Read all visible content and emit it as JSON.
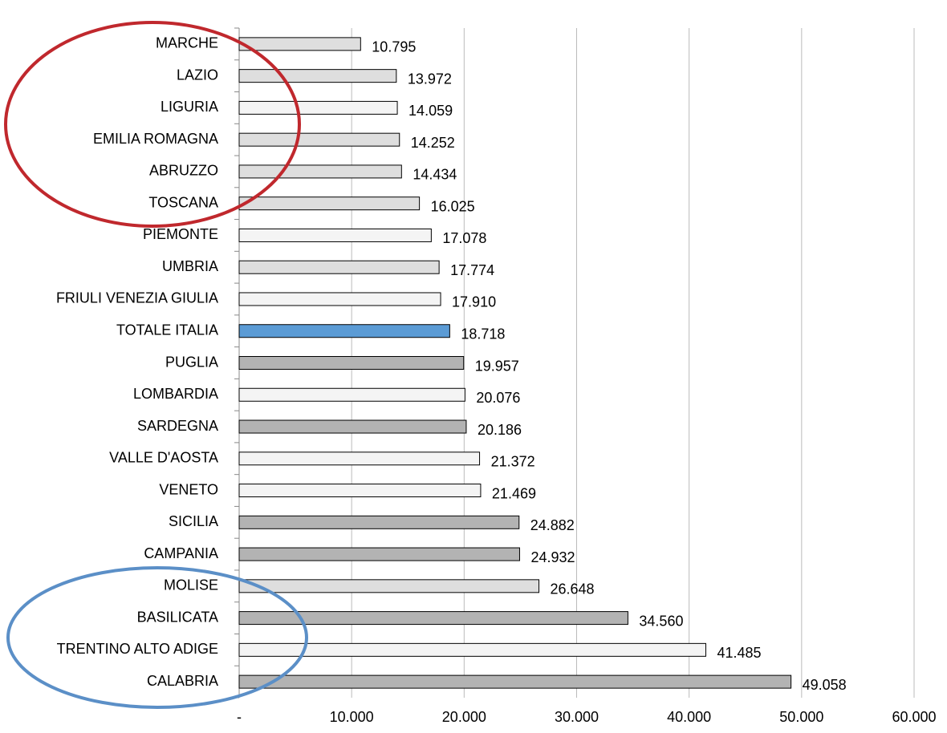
{
  "chart_data": {
    "type": "bar",
    "orientation": "horizontal",
    "categories": [
      "MARCHE",
      "LAZIO",
      "LIGURIA",
      "EMILIA ROMAGNA",
      "ABRUZZO",
      "TOSCANA",
      "PIEMONTE",
      "UMBRIA",
      "FRIULI VENEZIA GIULIA",
      "TOTALE ITALIA",
      "PUGLIA",
      "LOMBARDIA",
      "SARDEGNA",
      "VALLE D'AOSTA",
      "VENETO",
      "SICILIA",
      "CAMPANIA",
      "MOLISE",
      "BASILICATA",
      "TRENTINO ALTO ADIGE",
      "CALABRIA"
    ],
    "values": [
      10795,
      13972,
      14059,
      14252,
      14434,
      16025,
      17078,
      17774,
      17910,
      18718,
      19957,
      20076,
      20186,
      21372,
      21469,
      24882,
      24932,
      26648,
      34560,
      41485,
      49058
    ],
    "value_labels": [
      "10.795",
      "13.972",
      "14.059",
      "14.252",
      "14.434",
      "16.025",
      "17.078",
      "17.774",
      "17.910",
      "18.718",
      "19.957",
      "20.076",
      "20.186",
      "21.372",
      "21.469",
      "24.882",
      "24.932",
      "26.648",
      "34.560",
      "41.485",
      "49.058"
    ],
    "colors": [
      "#dedede",
      "#dedede",
      "#f4f4f4",
      "#dedede",
      "#dedede",
      "#dedede",
      "#f4f4f4",
      "#dedede",
      "#f4f4f4",
      "#5b9bd5",
      "#b3b3b3",
      "#f4f4f4",
      "#b3b3b3",
      "#f4f4f4",
      "#f4f4f4",
      "#b3b3b3",
      "#b3b3b3",
      "#dedede",
      "#b3b3b3",
      "#f4f4f4",
      "#b3b3b3"
    ],
    "xlim": [
      0,
      60000
    ],
    "xticks": [
      {
        "value": 0,
        "label": "-"
      },
      {
        "value": 10000,
        "label": "10.000"
      },
      {
        "value": 20000,
        "label": "20.000"
      },
      {
        "value": 30000,
        "label": "30.000"
      },
      {
        "value": 40000,
        "label": "40.000"
      },
      {
        "value": 50000,
        "label": "50.000"
      },
      {
        "value": 60000,
        "label": "60.000"
      }
    ],
    "grid": true
  }
}
